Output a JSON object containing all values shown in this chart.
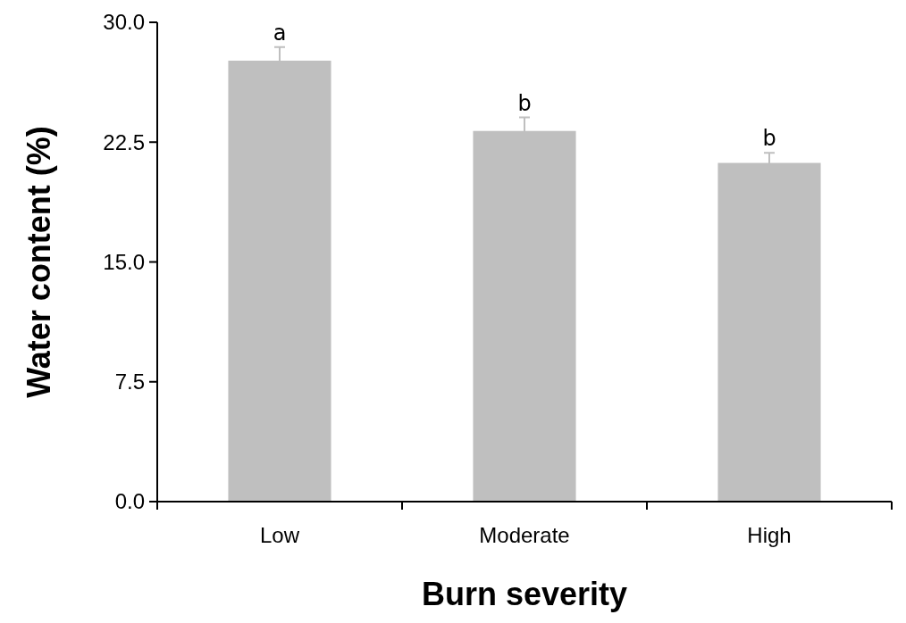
{
  "chart_data": {
    "type": "bar",
    "xlabel": "Burn severity",
    "ylabel": "Water content (%)",
    "categories": [
      "Low",
      "Moderate",
      "High"
    ],
    "values": [
      27.6,
      23.2,
      21.2
    ],
    "errors": [
      0.85,
      0.85,
      0.63
    ],
    "color": "#bfbfbf",
    "ylim": [
      0,
      30
    ],
    "yticks": [
      {
        "value": 0,
        "label": "0.0"
      },
      {
        "value": 7.5,
        "label": "7.5"
      },
      {
        "value": 15,
        "label": "15.0"
      },
      {
        "value": 22.5,
        "label": "22.5"
      },
      {
        "value": 30,
        "label": "30.0"
      }
    ],
    "grid": false,
    "annotations": [
      {
        "text": "a",
        "x": "Low",
        "y": 28.45
      },
      {
        "text": "b",
        "x": "Moderate",
        "y": 24.05
      },
      {
        "text": "b",
        "x": "High",
        "y": 21.83
      }
    ]
  }
}
